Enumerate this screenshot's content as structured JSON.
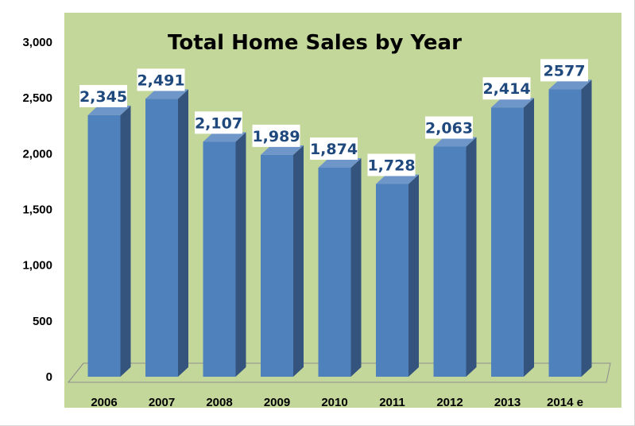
{
  "chart_data": {
    "type": "bar",
    "title": "Total Home Sales by Year",
    "categories": [
      "2006",
      "2007",
      "2008",
      "2009",
      "2010",
      "2011",
      "2012",
      "2013",
      "2014 e"
    ],
    "values": [
      2345,
      2491,
      2107,
      1989,
      1874,
      1728,
      2063,
      2414,
      2577
    ],
    "data_labels": [
      "2,345",
      "2,491",
      "2,107",
      "1,989",
      "1,874",
      "1,728",
      "2,063",
      "2,414",
      "2577"
    ],
    "y_ticks": [
      "0",
      "500",
      "1,000",
      "1,500",
      "2,000",
      "2,500",
      "3,000"
    ],
    "ylim": [
      0,
      3000
    ],
    "grid": false,
    "legend": "none",
    "style": "3d-columns",
    "colors": {
      "plot_background": "#c4d79b",
      "bar_front": "#4f81bd",
      "bar_side": "#35547d",
      "bar_top": "#6f96c9",
      "data_label_text": "#1f497d",
      "data_label_background": "#ffffff"
    }
  }
}
